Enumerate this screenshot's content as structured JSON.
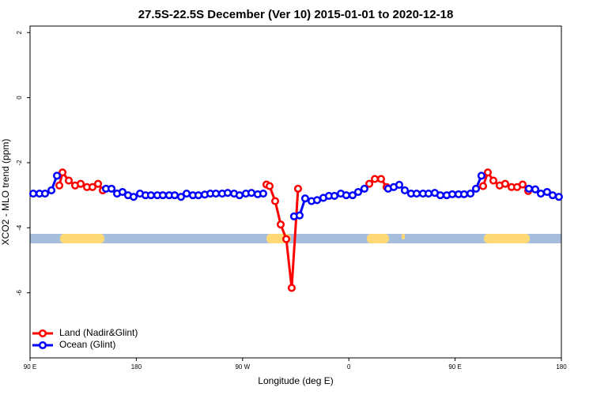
{
  "chart_data": {
    "type": "line",
    "title": "27.5S-22.5S December (Ver 10)   2015-01-01 to 2020-12-18",
    "xlabel": "Longitude (deg E)",
    "ylabel": "XCO2 - MLO trend (ppm)",
    "xlim": [
      90,
      540
    ],
    "ylim": [
      -8,
      2.2
    ],
    "xticks": [
      {
        "value": 90,
        "label": "90 E"
      },
      180,
      {
        "value": 270,
        "label": "90 W"
      },
      {
        "value": 360,
        "label": "0"
      },
      {
        "value": 450,
        "label": "90 E"
      },
      {
        "value": 540,
        "label": "180"
      }
    ],
    "yticks": [
      2,
      0,
      -2,
      -4,
      -6
    ],
    "legend": "bottom-left",
    "series": [
      {
        "name": "Land (Nadir&Glint)",
        "color": "#ff0000",
        "x": [
          114.8,
          117.5,
          122.8,
          128.2,
          132.9,
          138.2,
          142.9,
          147.6,
          151.6,
          null,
          290.2,
          292.9,
          297.6,
          302.3,
          307,
          311.6,
          317,
          null,
          377.3,
          382,
          387.3,
          392,
          null,
          473.7,
          477.7,
          482.4,
          487.7,
          492.4,
          497.8,
          502.5,
          507.2,
          511.9
        ],
        "values": [
          -2.7,
          -2.3,
          -2.55,
          -2.7,
          -2.65,
          -2.75,
          -2.75,
          -2.65,
          -2.85,
          null,
          -2.67,
          -2.72,
          -3.18,
          -3.9,
          -4.35,
          -5.85,
          -2.8,
          null,
          -2.65,
          -2.5,
          -2.5,
          -2.75,
          null,
          -2.72,
          -2.3,
          -2.55,
          -2.7,
          -2.65,
          -2.75,
          -2.75,
          -2.67,
          -2.87
        ]
      },
      {
        "name": "Ocean (Glint)",
        "color": "#0000ff",
        "x": [
          92.7,
          98,
          102.7,
          108.1,
          112.8,
          null,
          154.3,
          159,
          163.7,
          168.3,
          173,
          177.7,
          183.1,
          187.8,
          192.4,
          197.8,
          202.5,
          207.8,
          212.5,
          217.9,
          222.6,
          227.9,
          232.6,
          238,
          242.7,
          247.4,
          252.7,
          257.4,
          262.8,
          267.4,
          272.8,
          277.5,
          282.8,
          287.5,
          null,
          313.6,
          318.3,
          323,
          328.4,
          333.1,
          338.4,
          343.1,
          347.8,
          353.2,
          357.8,
          363.2,
          367.9,
          373.2,
          null,
          393.3,
          398,
          402.7,
          407.4,
          412.7,
          417.4,
          422.8,
          427.5,
          432.8,
          437.5,
          442.9,
          447.6,
          452.9,
          457.6,
          463,
          467.7,
          472.3,
          null,
          512.5,
          517.9,
          522.6,
          527.9,
          532.6,
          537.9
        ],
        "values": [
          -2.95,
          -2.95,
          -2.95,
          -2.85,
          -2.4,
          null,
          -2.8,
          -2.8,
          -2.95,
          -2.9,
          -3.0,
          -3.05,
          -2.95,
          -3.0,
          -3.0,
          -3.0,
          -3.0,
          -3.0,
          -3.0,
          -3.05,
          -2.95,
          -3.0,
          -3.0,
          -2.98,
          -2.95,
          -2.95,
          -2.95,
          -2.93,
          -2.95,
          -3.0,
          -2.95,
          -2.93,
          -2.97,
          -2.95,
          null,
          -3.65,
          -3.62,
          -3.1,
          -3.18,
          -3.15,
          -3.08,
          -3.02,
          -3.02,
          -2.95,
          -3.0,
          -3.0,
          -2.9,
          -2.8,
          null,
          -2.8,
          -2.75,
          -2.68,
          -2.85,
          -2.95,
          -2.95,
          -2.95,
          -2.95,
          -2.93,
          -3.0,
          -3.0,
          -2.97,
          -2.97,
          -2.97,
          -2.95,
          -2.8,
          -2.4,
          null,
          -2.8,
          -2.82,
          -2.95,
          -2.9,
          -3.0,
          -3.05
        ]
      }
    ]
  }
}
